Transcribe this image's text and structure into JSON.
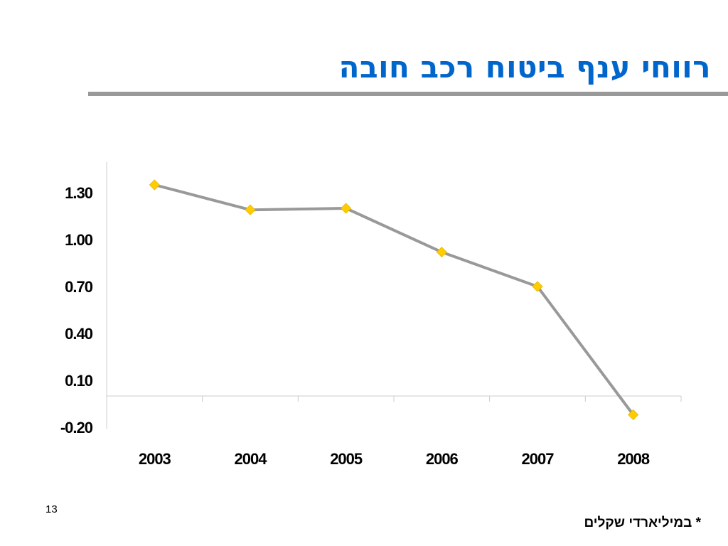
{
  "slide": {
    "title": "רווחי ענף ביטוח רכב חובה",
    "page_number": "13",
    "footnote": "* במיליארדי שקלים"
  },
  "colors": {
    "title": "#0066CC",
    "rule": "#999999",
    "line": "#999999",
    "marker": "#FFCC00",
    "axis": "#CCCCCC"
  },
  "chart_data": {
    "type": "line",
    "title": "",
    "xlabel": "",
    "ylabel": "",
    "categories": [
      "2003",
      "2004",
      "2005",
      "2006",
      "2007",
      "2008"
    ],
    "values": [
      1.35,
      1.19,
      1.2,
      0.92,
      0.7,
      -0.12
    ],
    "yticks": [
      "1.30",
      "1.00",
      "0.70",
      "0.40",
      "0.10",
      "-0.20"
    ],
    "ylim": [
      -0.2,
      1.5
    ],
    "grid": false,
    "legend": "none",
    "marker": "diamond"
  }
}
